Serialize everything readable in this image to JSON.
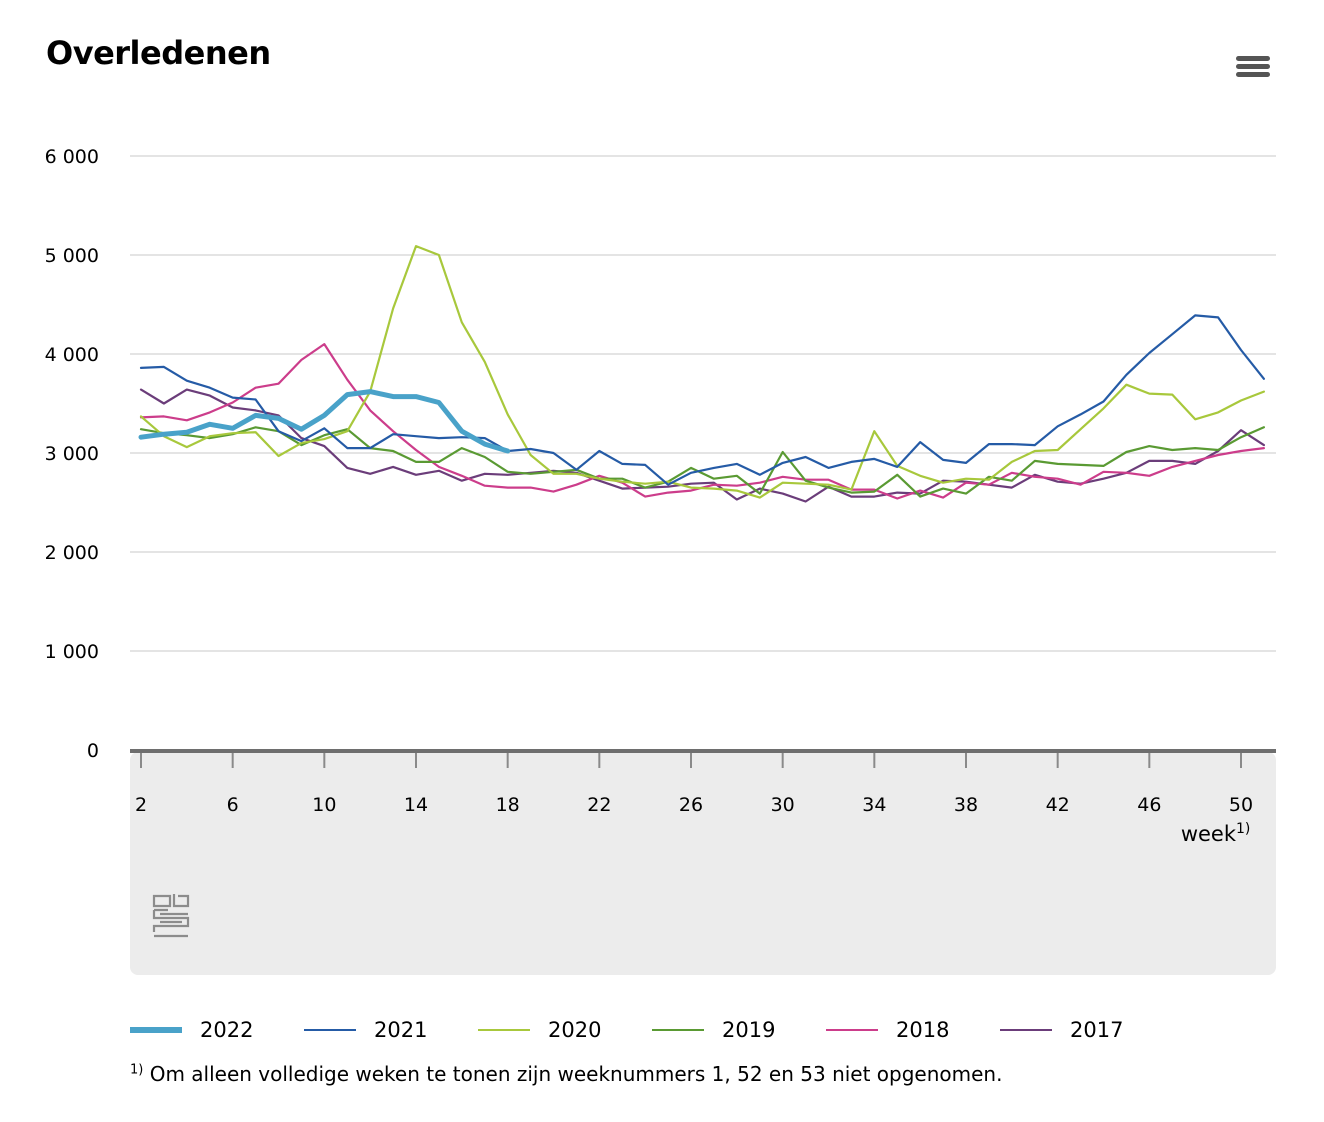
{
  "header": {
    "title": "Overledenen",
    "menu_icon": "hamburger-menu-icon"
  },
  "footnote": {
    "marker": "1)",
    "text": "Om alleen volledige weken te tonen zijn weeknummers 1, 52 en 53 niet opgenomen."
  },
  "chart_data": {
    "type": "line",
    "title": "Overledenen",
    "xlabel": "week",
    "xlabel_marker": "1)",
    "ylabel": "",
    "ylim": [
      0,
      6000
    ],
    "xlim": [
      2,
      51
    ],
    "yticks": [
      0,
      1000,
      2000,
      3000,
      4000,
      5000,
      6000
    ],
    "ytick_labels": [
      "0",
      "1 000",
      "2 000",
      "3 000",
      "4 000",
      "5 000",
      "6 000"
    ],
    "xticks": [
      2,
      6,
      10,
      14,
      18,
      22,
      26,
      30,
      34,
      38,
      42,
      46,
      50
    ],
    "xtick_labels": [
      "2",
      "6",
      "10",
      "14",
      "18",
      "22",
      "26",
      "30",
      "34",
      "38",
      "42",
      "46",
      "50"
    ],
    "grid": true,
    "legend_position": "bottom",
    "series": [
      {
        "name": "2017",
        "color": "#6b3d7a",
        "x": [
          2,
          3,
          4,
          5,
          6,
          7,
          8,
          9,
          10,
          11,
          12,
          13,
          14,
          15,
          16,
          17,
          18,
          19,
          20,
          21,
          22,
          23,
          24,
          25,
          26,
          27,
          28,
          29,
          30,
          31,
          32,
          33,
          34,
          35,
          36,
          37,
          38,
          39,
          40,
          41,
          42,
          43,
          44,
          45,
          46,
          47,
          48,
          49,
          50,
          51
        ],
        "values": [
          3640,
          3500,
          3640,
          3580,
          3460,
          3430,
          3380,
          3150,
          3070,
          2850,
          2790,
          2860,
          2780,
          2820,
          2720,
          2790,
          2780,
          2800,
          2820,
          2800,
          2720,
          2640,
          2650,
          2660,
          2690,
          2700,
          2530,
          2640,
          2590,
          2510,
          2660,
          2560,
          2560,
          2600,
          2590,
          2720,
          2710,
          2680,
          2650,
          2780,
          2710,
          2690,
          2740,
          2800,
          2920,
          2920,
          2890,
          3020,
          3230,
          3080
        ]
      },
      {
        "name": "2018",
        "color": "#cc3d8b",
        "x": [
          2,
          3,
          4,
          5,
          6,
          7,
          8,
          9,
          10,
          11,
          12,
          13,
          14,
          15,
          16,
          17,
          18,
          19,
          20,
          21,
          22,
          23,
          24,
          25,
          26,
          27,
          28,
          29,
          30,
          31,
          32,
          33,
          34,
          35,
          36,
          37,
          38,
          39,
          40,
          41,
          42,
          43,
          44,
          45,
          46,
          47,
          48,
          49,
          50,
          51
        ],
        "values": [
          3360,
          3370,
          3330,
          3410,
          3510,
          3660,
          3700,
          3940,
          4100,
          3740,
          3430,
          3220,
          3030,
          2860,
          2770,
          2670,
          2650,
          2650,
          2610,
          2680,
          2770,
          2700,
          2560,
          2600,
          2620,
          2680,
          2670,
          2700,
          2760,
          2730,
          2730,
          2630,
          2630,
          2540,
          2620,
          2550,
          2700,
          2680,
          2800,
          2760,
          2740,
          2680,
          2810,
          2800,
          2770,
          2860,
          2920,
          2980,
          3020,
          3050
        ]
      },
      {
        "name": "2019",
        "color": "#5a9a33",
        "x": [
          2,
          3,
          4,
          5,
          6,
          7,
          8,
          9,
          10,
          11,
          12,
          13,
          14,
          15,
          16,
          17,
          18,
          19,
          20,
          21,
          22,
          23,
          24,
          25,
          26,
          27,
          28,
          29,
          30,
          31,
          32,
          33,
          34,
          35,
          36,
          37,
          38,
          39,
          40,
          41,
          42,
          43,
          44,
          45,
          46,
          47,
          48,
          49,
          50,
          51
        ],
        "values": [
          3240,
          3200,
          3180,
          3150,
          3190,
          3260,
          3220,
          3080,
          3180,
          3240,
          3050,
          3020,
          2910,
          2910,
          3050,
          2960,
          2810,
          2790,
          2810,
          2830,
          2740,
          2740,
          2650,
          2710,
          2850,
          2740,
          2770,
          2590,
          3010,
          2720,
          2650,
          2600,
          2610,
          2780,
          2560,
          2640,
          2590,
          2760,
          2720,
          2920,
          2890,
          2880,
          2870,
          3010,
          3070,
          3030,
          3050,
          3030,
          3160,
          3260
        ]
      },
      {
        "name": "2020",
        "color": "#a8c83c",
        "x": [
          2,
          3,
          4,
          5,
          6,
          7,
          8,
          9,
          10,
          11,
          12,
          13,
          14,
          15,
          16,
          17,
          18,
          19,
          20,
          21,
          22,
          23,
          24,
          25,
          26,
          27,
          28,
          29,
          30,
          31,
          32,
          33,
          34,
          35,
          36,
          37,
          38,
          39,
          40,
          41,
          42,
          43,
          44,
          45,
          46,
          47,
          48,
          49,
          50,
          51
        ],
        "values": [
          3370,
          3170,
          3060,
          3170,
          3200,
          3210,
          2970,
          3100,
          3140,
          3220,
          3620,
          4460,
          5090,
          5000,
          4320,
          3920,
          3390,
          2980,
          2790,
          2790,
          2740,
          2710,
          2690,
          2710,
          2650,
          2640,
          2620,
          2550,
          2700,
          2690,
          2680,
          2630,
          3220,
          2870,
          2770,
          2700,
          2740,
          2730,
          2910,
          3020,
          3030,
          3240,
          3450,
          3690,
          3600,
          3590,
          3340,
          3410,
          3530,
          3620
        ]
      },
      {
        "name": "2021",
        "color": "#255ba6",
        "x": [
          2,
          3,
          4,
          5,
          6,
          7,
          8,
          9,
          10,
          11,
          12,
          13,
          14,
          15,
          16,
          17,
          18,
          19,
          20,
          21,
          22,
          23,
          24,
          25,
          26,
          27,
          28,
          29,
          30,
          31,
          32,
          33,
          34,
          35,
          36,
          37,
          38,
          39,
          40,
          41,
          42,
          43,
          44,
          45,
          46,
          47,
          48,
          49,
          50,
          51
        ],
        "values": [
          3860,
          3870,
          3730,
          3660,
          3560,
          3540,
          3220,
          3120,
          3250,
          3050,
          3050,
          3190,
          3170,
          3150,
          3160,
          3150,
          3020,
          3040,
          3000,
          2830,
          3020,
          2890,
          2880,
          2680,
          2800,
          2850,
          2890,
          2780,
          2900,
          2960,
          2850,
          2910,
          2940,
          2860,
          3110,
          2930,
          2900,
          3090,
          3090,
          3080,
          3270,
          3390,
          3520,
          3790,
          4010,
          4200,
          4390,
          4370,
          4040,
          3750
        ]
      },
      {
        "name": "2022",
        "color": "#49a2c9",
        "x": [
          2,
          3,
          4,
          5,
          6,
          7,
          8,
          9,
          10,
          11,
          12,
          13,
          14,
          15,
          16,
          17,
          18
        ],
        "values": [
          3160,
          3190,
          3210,
          3290,
          3250,
          3380,
          3350,
          3240,
          3380,
          3590,
          3620,
          3570,
          3570,
          3510,
          3220,
          3090,
          3020
        ]
      }
    ]
  }
}
